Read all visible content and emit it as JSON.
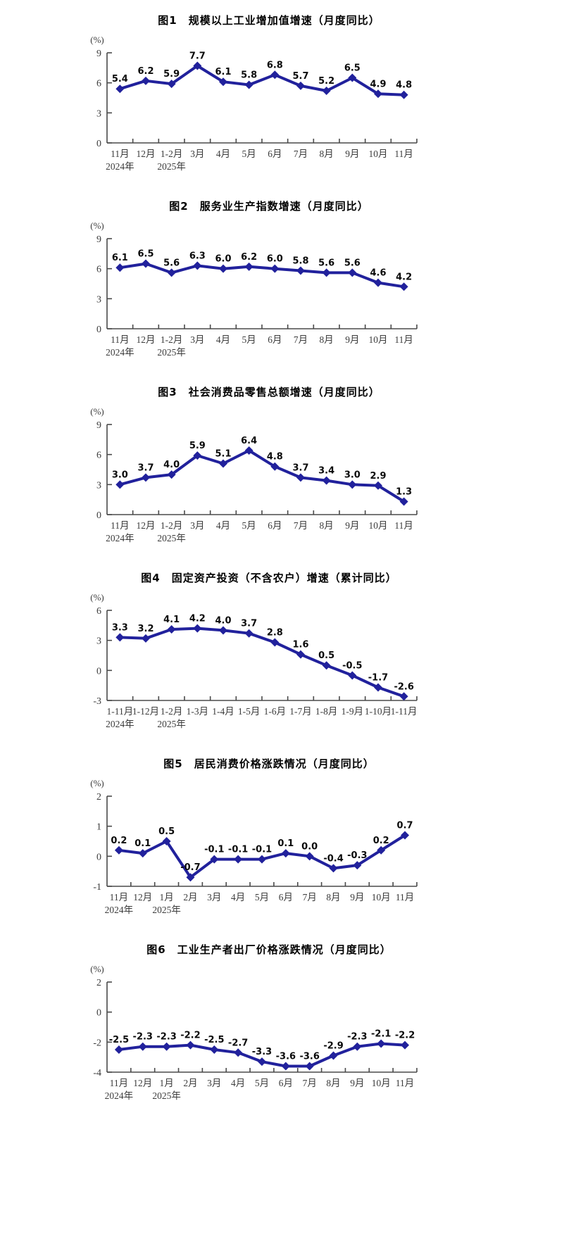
{
  "page": {
    "background": "#ffffff"
  },
  "style": {
    "line_color": "#21219c",
    "marker_color": "#21219c",
    "data_label_color": "#0a0a0a",
    "axis_color": "#4a4a4a",
    "tick_text_color": "#3c3c3c"
  },
  "chart_data": [
    {
      "type": "line",
      "title": "图1　规模以上工业增加值增速（月度同比）",
      "unit_label": "(%)",
      "categories": [
        "11月",
        "12月",
        "1-2月",
        "3月",
        "4月",
        "5月",
        "6月",
        "7月",
        "8月",
        "9月",
        "10月",
        "11月"
      ],
      "values": [
        5.4,
        6.2,
        5.9,
        7.7,
        6.1,
        5.8,
        6.8,
        5.7,
        5.2,
        6.5,
        4.9,
        4.8
      ],
      "year_labels": [
        {
          "index": 0,
          "label": "2024年"
        },
        {
          "index": 2,
          "label": "2025年"
        }
      ],
      "yticks": [
        9,
        6,
        3,
        0
      ],
      "ylim": [
        0,
        9
      ],
      "grid": false,
      "legend": "none"
    },
    {
      "type": "line",
      "title": "图2　服务业生产指数增速（月度同比）",
      "unit_label": "(%)",
      "categories": [
        "11月",
        "12月",
        "1-2月",
        "3月",
        "4月",
        "5月",
        "6月",
        "7月",
        "8月",
        "9月",
        "10月",
        "11月"
      ],
      "values": [
        6.1,
        6.5,
        5.6,
        6.3,
        6.0,
        6.2,
        6.0,
        5.8,
        5.6,
        5.6,
        4.6,
        4.2
      ],
      "year_labels": [
        {
          "index": 0,
          "label": "2024年"
        },
        {
          "index": 2,
          "label": "2025年"
        }
      ],
      "yticks": [
        9,
        6,
        3,
        0
      ],
      "ylim": [
        0,
        9
      ],
      "grid": false,
      "legend": "none"
    },
    {
      "type": "line",
      "title": "图3　社会消费品零售总额增速（月度同比）",
      "unit_label": "(%)",
      "categories": [
        "11月",
        "12月",
        "1-2月",
        "3月",
        "4月",
        "5月",
        "6月",
        "7月",
        "8月",
        "9月",
        "10月",
        "11月"
      ],
      "values": [
        3.0,
        3.7,
        4.0,
        5.9,
        5.1,
        6.4,
        4.8,
        3.7,
        3.4,
        3.0,
        2.9,
        1.3
      ],
      "year_labels": [
        {
          "index": 0,
          "label": "2024年"
        },
        {
          "index": 2,
          "label": "2025年"
        }
      ],
      "yticks": [
        9,
        6,
        3,
        0
      ],
      "ylim": [
        0,
        9
      ],
      "grid": false,
      "legend": "none"
    },
    {
      "type": "line",
      "title": "图4　固定资产投资（不含农户）增速（累计同比）",
      "unit_label": "(%)",
      "categories": [
        "1-11月",
        "1-12月",
        "1-2月",
        "1-3月",
        "1-4月",
        "1-5月",
        "1-6月",
        "1-7月",
        "1-8月",
        "1-9月",
        "1-10月",
        "1-11月"
      ],
      "values": [
        3.3,
        3.2,
        4.1,
        4.2,
        4.0,
        3.7,
        2.8,
        1.6,
        0.5,
        -0.5,
        -1.7,
        -2.6
      ],
      "year_labels": [
        {
          "index": 0,
          "label": "2024年"
        },
        {
          "index": 2,
          "label": "2025年"
        }
      ],
      "yticks": [
        6,
        3,
        0,
        -3
      ],
      "ylim": [
        -3,
        6
      ],
      "grid": false,
      "legend": "none"
    },
    {
      "type": "line",
      "title": "图5　居民消费价格涨跌情况（月度同比）",
      "unit_label": "(%)",
      "categories": [
        "11月",
        "12月",
        "1月",
        "2月",
        "3月",
        "4月",
        "5月",
        "6月",
        "7月",
        "8月",
        "9月",
        "10月",
        "11月"
      ],
      "values": [
        0.2,
        0.1,
        0.5,
        -0.7,
        -0.1,
        -0.1,
        -0.1,
        0.1,
        0.0,
        -0.4,
        -0.3,
        0.2,
        0.7
      ],
      "year_labels": [
        {
          "index": 0,
          "label": "2024年"
        },
        {
          "index": 2,
          "label": "2025年"
        }
      ],
      "yticks": [
        2,
        1,
        0,
        -1
      ],
      "ylim": [
        -1,
        2
      ],
      "grid": false,
      "legend": "none"
    },
    {
      "type": "line",
      "title": "图6　工业生产者出厂价格涨跌情况（月度同比）",
      "unit_label": "(%)",
      "categories": [
        "11月",
        "12月",
        "1月",
        "2月",
        "3月",
        "4月",
        "5月",
        "6月",
        "7月",
        "8月",
        "9月",
        "10月",
        "11月"
      ],
      "values": [
        -2.5,
        -2.3,
        -2.3,
        -2.2,
        -2.5,
        -2.7,
        -3.3,
        -3.6,
        -3.6,
        -2.9,
        -2.3,
        -2.1,
        -2.2
      ],
      "year_labels": [
        {
          "index": 0,
          "label": "2024年"
        },
        {
          "index": 2,
          "label": "2025年"
        }
      ],
      "yticks": [
        2,
        0,
        -2,
        -4
      ],
      "ylim": [
        -4,
        2
      ],
      "grid": false,
      "legend": "none"
    }
  ]
}
